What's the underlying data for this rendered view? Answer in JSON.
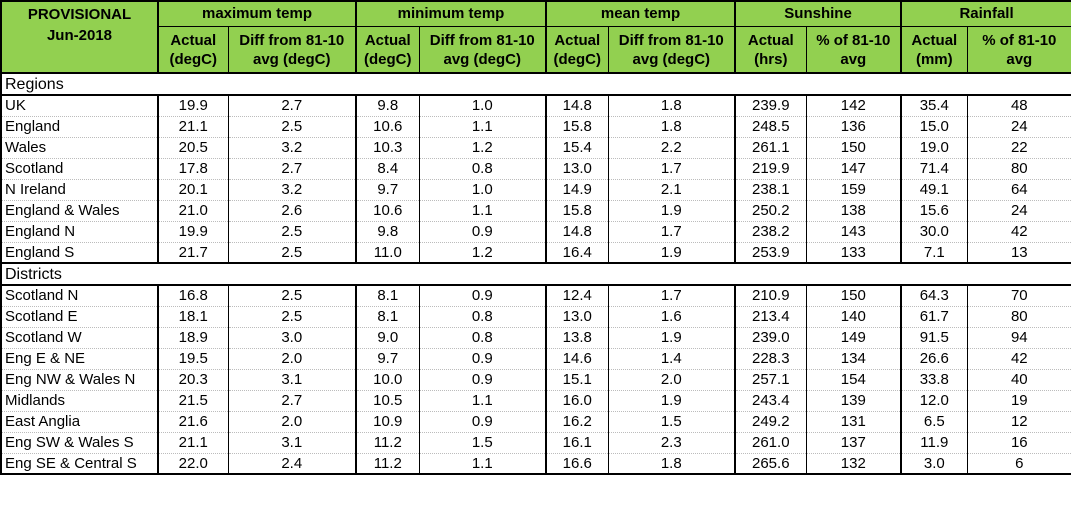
{
  "header": {
    "label1": "PROVISIONAL",
    "label2": "Jun-2018",
    "groups": [
      "maximum temp",
      "minimum temp",
      "mean temp",
      "Sunshine",
      "Rainfall"
    ],
    "sub_top": [
      "Actual",
      "Diff from 81-10",
      "Actual",
      "Diff from 81-10",
      "Actual",
      "Diff from 81-10",
      "Actual",
      "% of 81-10",
      "Actual",
      "% of 81-10"
    ],
    "sub_bottom": [
      "(degC)",
      "avg (degC)",
      "(degC)",
      "avg (degC)",
      "(degC)",
      "avg (degC)",
      "(hrs)",
      "avg",
      "(mm)",
      "avg"
    ]
  },
  "sections": [
    {
      "title": "Regions",
      "rows": [
        [
          "UK",
          "19.9",
          "2.7",
          "9.8",
          "1.0",
          "14.8",
          "1.8",
          "239.9",
          "142",
          "35.4",
          "48"
        ],
        [
          "England",
          "21.1",
          "2.5",
          "10.6",
          "1.1",
          "15.8",
          "1.8",
          "248.5",
          "136",
          "15.0",
          "24"
        ],
        [
          "Wales",
          "20.5",
          "3.2",
          "10.3",
          "1.2",
          "15.4",
          "2.2",
          "261.1",
          "150",
          "19.0",
          "22"
        ],
        [
          "Scotland",
          "17.8",
          "2.7",
          "8.4",
          "0.8",
          "13.0",
          "1.7",
          "219.9",
          "147",
          "71.4",
          "80"
        ],
        [
          "N Ireland",
          "20.1",
          "3.2",
          "9.7",
          "1.0",
          "14.9",
          "2.1",
          "238.1",
          "159",
          "49.1",
          "64"
        ],
        [
          "England & Wales",
          "21.0",
          "2.6",
          "10.6",
          "1.1",
          "15.8",
          "1.9",
          "250.2",
          "138",
          "15.6",
          "24"
        ],
        [
          "England N",
          "19.9",
          "2.5",
          "9.8",
          "0.9",
          "14.8",
          "1.7",
          "238.2",
          "143",
          "30.0",
          "42"
        ],
        [
          "England S",
          "21.7",
          "2.5",
          "11.0",
          "1.2",
          "16.4",
          "1.9",
          "253.9",
          "133",
          "7.1",
          "13"
        ]
      ]
    },
    {
      "title": "Districts",
      "rows": [
        [
          "Scotland N",
          "16.8",
          "2.5",
          "8.1",
          "0.9",
          "12.4",
          "1.7",
          "210.9",
          "150",
          "64.3",
          "70"
        ],
        [
          "Scotland E",
          "18.1",
          "2.5",
          "8.1",
          "0.8",
          "13.0",
          "1.6",
          "213.4",
          "140",
          "61.7",
          "80"
        ],
        [
          "Scotland W",
          "18.9",
          "3.0",
          "9.0",
          "0.8",
          "13.8",
          "1.9",
          "239.0",
          "149",
          "91.5",
          "94"
        ],
        [
          "Eng E & NE",
          "19.5",
          "2.0",
          "9.7",
          "0.9",
          "14.6",
          "1.4",
          "228.3",
          "134",
          "26.6",
          "42"
        ],
        [
          "Eng NW & Wales N",
          "20.3",
          "3.1",
          "10.0",
          "0.9",
          "15.1",
          "2.0",
          "257.1",
          "154",
          "33.8",
          "40"
        ],
        [
          "Midlands",
          "21.5",
          "2.7",
          "10.5",
          "1.1",
          "16.0",
          "1.9",
          "243.4",
          "139",
          "12.0",
          "19"
        ],
        [
          "East Anglia",
          "21.6",
          "2.0",
          "10.9",
          "0.9",
          "16.2",
          "1.5",
          "249.2",
          "131",
          "6.5",
          "12"
        ],
        [
          "Eng SW & Wales S",
          "21.1",
          "3.1",
          "11.2",
          "1.5",
          "16.1",
          "2.3",
          "261.0",
          "137",
          "11.9",
          "16"
        ],
        [
          "Eng SE & Central S",
          "22.0",
          "2.4",
          "11.2",
          "1.1",
          "16.6",
          "1.8",
          "265.6",
          "132",
          "3.0",
          "6"
        ]
      ]
    }
  ],
  "colors": {
    "header_bg": "#92d050",
    "border": "#000000"
  }
}
